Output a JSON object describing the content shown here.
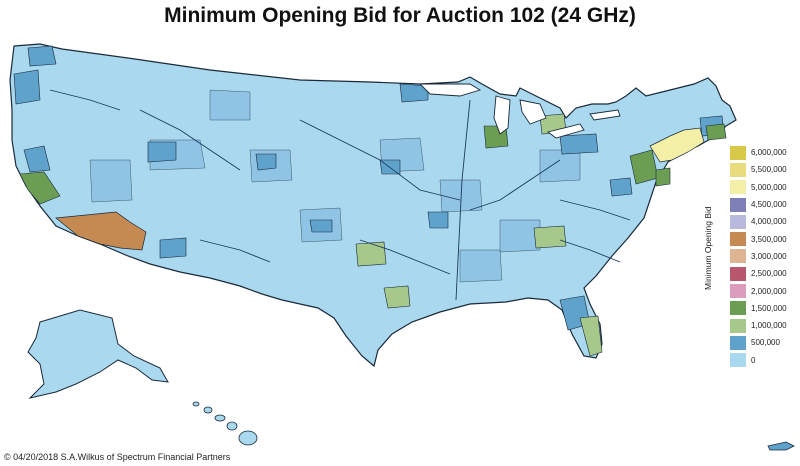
{
  "title": "Minimum Opening Bid for Auction 102 (24 GHz)",
  "legend": {
    "title": "Minimum Opening Bid",
    "items": [
      {
        "label": "6,000,000",
        "color": "#d8c94a"
      },
      {
        "label": "5,500,000",
        "color": "#e8dc7c"
      },
      {
        "label": "5,000,000",
        "color": "#f4efa6"
      },
      {
        "label": "4,500,000",
        "color": "#7f7fb8"
      },
      {
        "label": "4,000,000",
        "color": "#b9b9de"
      },
      {
        "label": "3,500,000",
        "color": "#c48a52"
      },
      {
        "label": "3,000,000",
        "color": "#ddb592"
      },
      {
        "label": "2,500,000",
        "color": "#b8566e"
      },
      {
        "label": "2,000,000",
        "color": "#dc9cbc"
      },
      {
        "label": "1,500,000",
        "color": "#6b9e52"
      },
      {
        "label": "1,000,000",
        "color": "#a6c88a"
      },
      {
        "label": "500,000",
        "color": "#5fa2cc"
      },
      {
        "label": "0",
        "color": "#a9d8ef"
      }
    ]
  },
  "credit": "© 04/20/2018 S.A.Wilkus of Spectrum Financial Partners",
  "colors": {
    "base": "#a9d8ef",
    "mid": "#5fa2cc",
    "green_dark": "#6b9e52",
    "green_light": "#a6c88a",
    "orange": "#c48a52",
    "yellow": "#f4efa6",
    "water": "#1a4a6e"
  }
}
